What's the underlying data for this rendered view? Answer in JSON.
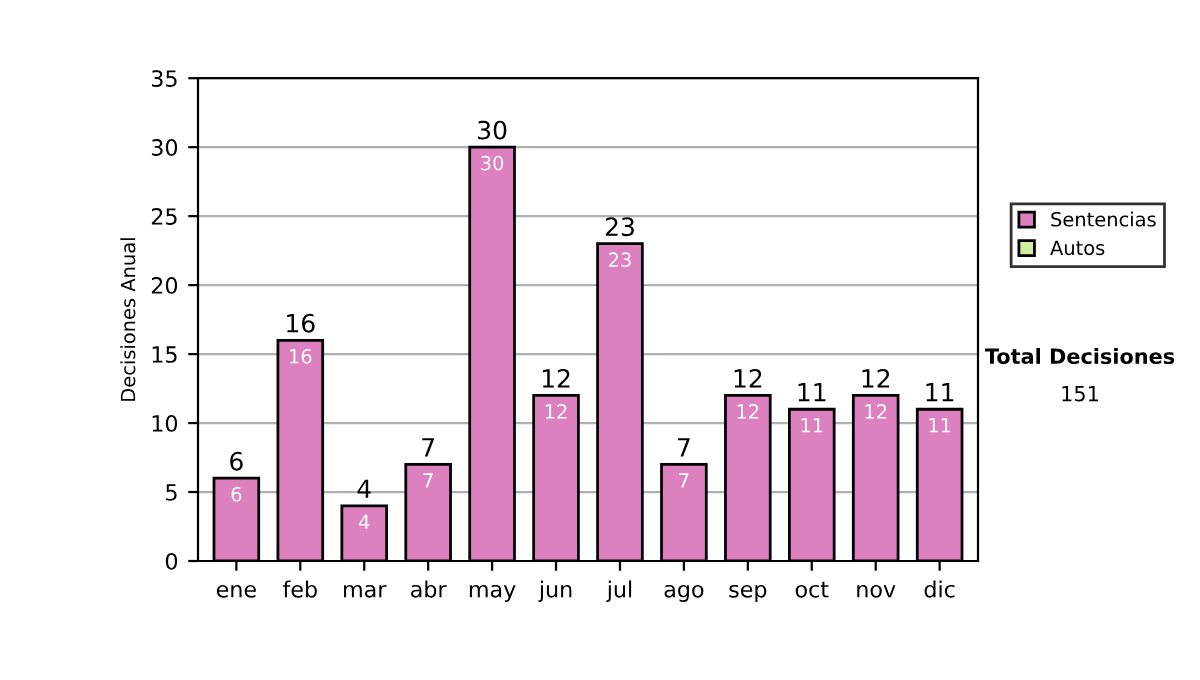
{
  "chart_data": {
    "type": "bar",
    "stacked": true,
    "ylabel": "Decisiones Anual",
    "categories": [
      "ene",
      "feb",
      "mar",
      "abr",
      "may",
      "jun",
      "jul",
      "ago",
      "sep",
      "oct",
      "nov",
      "dic"
    ],
    "series": [
      {
        "name": "Sentencias",
        "color": "#dd80c0",
        "values": [
          6,
          16,
          4,
          7,
          30,
          12,
          23,
          7,
          12,
          11,
          12,
          11
        ],
        "value_labels": [
          "6",
          "16",
          "4",
          "7",
          "30",
          "12",
          "23",
          "7",
          "12",
          "11",
          "12",
          "11"
        ]
      },
      {
        "name": "Autos",
        "color": "#d4eaa0",
        "values": [
          0,
          0,
          0,
          0,
          0,
          0,
          0,
          0,
          0,
          0,
          0,
          0
        ]
      }
    ],
    "totals": [
      "6",
      "16",
      "4",
      "7",
      "30",
      "12",
      "23",
      "7",
      "12",
      "11",
      "12",
      "11"
    ],
    "ylim": [
      0,
      35
    ],
    "yticks": [
      0,
      5,
      10,
      15,
      20,
      25,
      30,
      35
    ],
    "grid": "y",
    "legend": "right",
    "annotations": [
      "Total Decisiones",
      "151"
    ]
  }
}
